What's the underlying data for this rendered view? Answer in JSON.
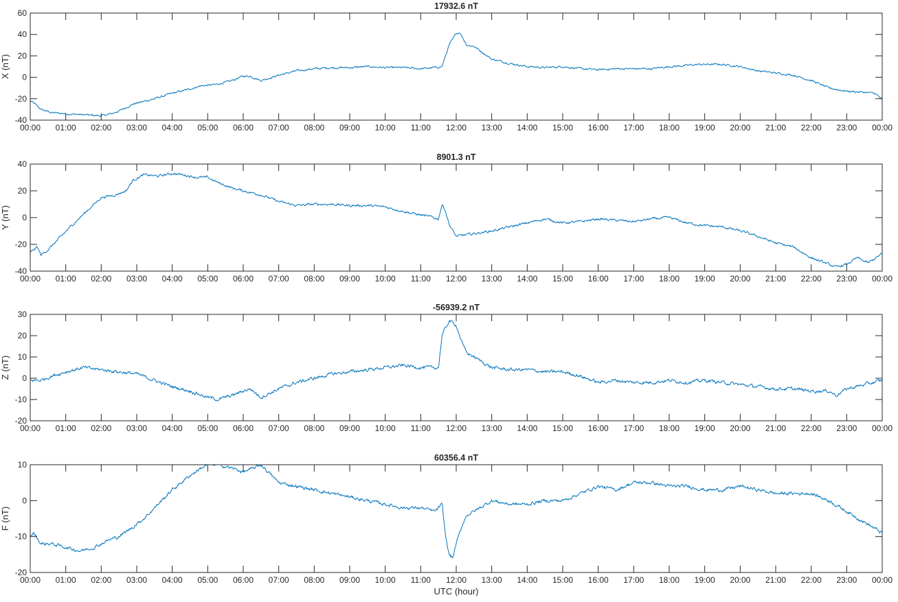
{
  "figure": {
    "xlabel": "UTC (hour)"
  },
  "style": {
    "line_color": "#0072BD",
    "axis_color": "#262626",
    "background": "#ffffff"
  },
  "x_ticks": [
    "00:00",
    "01:00",
    "02:00",
    "03:00",
    "04:00",
    "05:00",
    "06:00",
    "07:00",
    "08:00",
    "09:00",
    "10:00",
    "11:00",
    "12:00",
    "13:00",
    "14:00",
    "15:00",
    "16:00",
    "17:00",
    "18:00",
    "19:00",
    "20:00",
    "21:00",
    "22:00",
    "23:00",
    "00:00"
  ],
  "chart_data": [
    {
      "type": "line",
      "title": "17932.6 nT",
      "ylabel": "X (nT)",
      "xlim": [
        0,
        24
      ],
      "ylim": [
        -40,
        60
      ],
      "yticks": [
        -40,
        -20,
        0,
        20,
        40,
        60
      ],
      "grid": false,
      "noise": 0.7,
      "series": [
        {
          "x": [
            0,
            0.1,
            0.3,
            0.6,
            1.0,
            1.5,
            2.0,
            2.3,
            2.6,
            2.9,
            3.5,
            4.0,
            4.5,
            4.8,
            5.2,
            5.6,
            6.0,
            6.2,
            6.5,
            7.0,
            7.5,
            8.0,
            8.5,
            9.0,
            9.5,
            10.0,
            10.5,
            11.0,
            11.4,
            11.6,
            11.8,
            12.0,
            12.1,
            12.3,
            12.5,
            13.0,
            13.5,
            14.0,
            14.5,
            15.0,
            15.5,
            16.0,
            16.5,
            17.0,
            17.5,
            18.0,
            18.5,
            18.8,
            19.5,
            20.0,
            20.5,
            21.0,
            21.5,
            22.0,
            22.5,
            23.0,
            23.5,
            23.8,
            24.0
          ],
          "y": [
            -22,
            -24,
            -30,
            -33,
            -34,
            -35,
            -36,
            -34,
            -30,
            -25,
            -20,
            -15,
            -11,
            -8,
            -7,
            -4,
            1,
            1,
            -3,
            2,
            6,
            8,
            9,
            9,
            10,
            9,
            9,
            8,
            9,
            10,
            30,
            41,
            42,
            30,
            29,
            17,
            13,
            10,
            9,
            10,
            8,
            7,
            8,
            8,
            8,
            10,
            11,
            12,
            12,
            10,
            6,
            4,
            2,
            -3,
            -10,
            -13,
            -14,
            -15,
            -21
          ]
        }
      ]
    },
    {
      "type": "line",
      "title": "8901.3 nT",
      "ylabel": "Y (nT)",
      "xlim": [
        0,
        24
      ],
      "ylim": [
        -40,
        40
      ],
      "yticks": [
        -40,
        -20,
        0,
        20,
        40
      ],
      "grid": false,
      "noise": 0.7,
      "series": [
        {
          "x": [
            0,
            0.1,
            0.2,
            0.3,
            0.5,
            0.8,
            1.2,
            1.6,
            2.0,
            2.4,
            2.7,
            2.9,
            3.2,
            3.6,
            4.0,
            4.3,
            4.7,
            5.0,
            5.3,
            5.7,
            6.0,
            6.5,
            7.0,
            7.5,
            8.0,
            8.5,
            9.0,
            9.5,
            10.0,
            10.3,
            10.8,
            11.2,
            11.5,
            11.6,
            11.7,
            11.8,
            12.0,
            12.5,
            13.0,
            13.5,
            14.0,
            14.5,
            15.0,
            15.5,
            16.0,
            16.5,
            17.0,
            17.5,
            18.0,
            18.5,
            19.0,
            19.5,
            20.0,
            20.5,
            21.0,
            21.5,
            22.0,
            22.3,
            22.7,
            23.0,
            23.3,
            23.6,
            24.0
          ],
          "y": [
            -26,
            -24,
            -22,
            -28,
            -24,
            -16,
            -5,
            5,
            15,
            17,
            20,
            28,
            32,
            31,
            33,
            32,
            30,
            30,
            26,
            22,
            20,
            17,
            12,
            9,
            10,
            10,
            9,
            9,
            8,
            6,
            3,
            1,
            -1,
            10,
            5,
            -5,
            -14,
            -12,
            -10,
            -7,
            -4,
            -1,
            -4,
            -3,
            -1,
            -2,
            -3,
            -1,
            0,
            -4,
            -6,
            -7,
            -10,
            -14,
            -19,
            -22,
            -30,
            -33,
            -37,
            -35,
            -30,
            -34,
            -27
          ]
        }
      ]
    },
    {
      "type": "line",
      "title": "-56939.2 nT",
      "ylabel": "Z (nT)",
      "xlim": [
        0,
        24
      ],
      "ylim": [
        -20,
        30
      ],
      "yticks": [
        -20,
        -10,
        0,
        10,
        20,
        30
      ],
      "grid": false,
      "noise": 0.6,
      "series": [
        {
          "x": [
            0,
            0.3,
            0.6,
            1.0,
            1.5,
            2.0,
            2.5,
            3.0,
            3.5,
            4.0,
            4.5,
            5.0,
            5.3,
            5.7,
            6.0,
            6.2,
            6.5,
            7.0,
            7.5,
            8.0,
            8.5,
            9.0,
            9.5,
            10.0,
            10.5,
            11.0,
            11.5,
            11.6,
            11.8,
            12.0,
            12.2,
            12.3,
            12.5,
            13.0,
            13.5,
            14.0,
            14.5,
            15.0,
            15.5,
            16.0,
            16.5,
            17.0,
            17.5,
            18.0,
            18.5,
            19.0,
            19.5,
            20.0,
            20.5,
            21.0,
            21.5,
            22.0,
            22.5,
            22.7,
            23.0,
            23.5,
            24.0
          ],
          "y": [
            -1,
            -1,
            1,
            3,
            5,
            4,
            3,
            2,
            -1,
            -4,
            -6,
            -9,
            -10,
            -8,
            -6,
            -5,
            -9,
            -5,
            -2,
            0,
            2,
            3,
            4,
            5,
            6,
            5,
            5,
            20,
            27,
            25,
            15,
            12,
            10,
            5,
            4,
            4,
            3,
            3,
            1,
            -2,
            -1,
            -2,
            -2,
            -1,
            -2,
            -1,
            -2,
            -3,
            -4,
            -5,
            -5,
            -6,
            -6,
            -8,
            -5,
            -3,
            -1
          ]
        }
      ]
    },
    {
      "type": "line",
      "title": "60356.4 nT",
      "ylabel": "F (nT)",
      "xlim": [
        0,
        24
      ],
      "ylim": [
        -20,
        10
      ],
      "yticks": [
        -20,
        -10,
        0,
        10
      ],
      "grid": false,
      "noise": 0.35,
      "series": [
        {
          "x": [
            0,
            0.1,
            0.3,
            0.6,
            1.0,
            1.4,
            1.8,
            2.2,
            2.5,
            2.8,
            3.2,
            3.6,
            4.0,
            4.5,
            4.8,
            5.0,
            5.3,
            5.7,
            6.0,
            6.3,
            6.5,
            6.8,
            7.0,
            7.5,
            8.0,
            8.5,
            9.0,
            9.5,
            10.0,
            10.5,
            11.0,
            11.4,
            11.6,
            11.7,
            11.8,
            11.9,
            12.0,
            12.2,
            12.3,
            12.5,
            13.0,
            13.5,
            14.0,
            14.5,
            15.0,
            15.5,
            16.0,
            16.5,
            17.0,
            17.5,
            18.0,
            18.5,
            19.0,
            19.5,
            20.0,
            20.5,
            21.0,
            21.5,
            22.0,
            22.5,
            23.0,
            23.5,
            24.0
          ],
          "y": [
            -10,
            -9,
            -12,
            -12,
            -13,
            -14,
            -13,
            -11,
            -10,
            -8,
            -5,
            -1,
            3,
            7,
            9,
            10,
            10,
            9,
            8,
            9,
            10,
            7,
            5,
            4,
            3,
            2,
            1,
            0,
            -1,
            -2,
            -2,
            -3,
            -1,
            -10,
            -15,
            -16,
            -12,
            -6,
            -4,
            -3,
            0,
            -1,
            -1,
            0,
            0,
            2,
            4,
            3,
            5,
            5,
            4,
            4,
            3,
            3,
            4,
            3,
            2,
            2,
            2,
            0,
            -3,
            -6,
            -9
          ]
        }
      ]
    }
  ]
}
